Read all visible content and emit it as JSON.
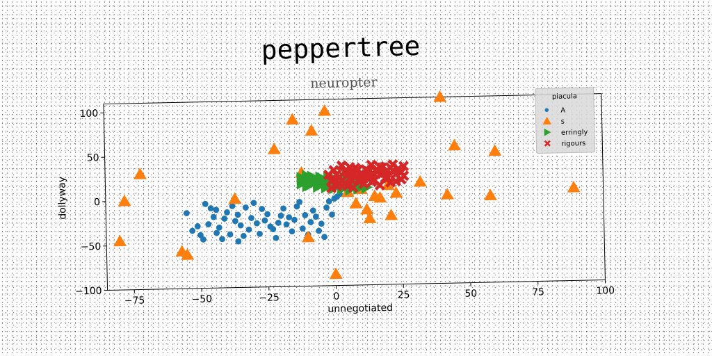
{
  "chart_data": {
    "type": "scatter",
    "title": "peppertree",
    "subtitle": "neuropter",
    "xlabel": "unnegotiated",
    "ylabel": "dollyway",
    "xlim": [
      -85,
      100
    ],
    "ylim": [
      -100,
      110
    ],
    "xticks": [
      -75,
      -50,
      -25,
      0,
      25,
      50,
      75,
      100
    ],
    "yticks": [
      -100,
      -50,
      0,
      50,
      100
    ],
    "grid": false,
    "legend": {
      "title": "piacula",
      "position": "top-right"
    },
    "series": [
      {
        "name": "A",
        "marker": "circle",
        "color": "#1f77b4",
        "points": [
          [
            -55,
            -15
          ],
          [
            -53,
            -35
          ],
          [
            -51,
            -30
          ],
          [
            -49,
            -45
          ],
          [
            -48,
            -5
          ],
          [
            -47,
            -28
          ],
          [
            -46,
            -10
          ],
          [
            -45,
            -20
          ],
          [
            -44,
            -38
          ],
          [
            -43,
            -32
          ],
          [
            -42,
            -45
          ],
          [
            -41,
            -22
          ],
          [
            -40,
            -15
          ],
          [
            -39,
            -40
          ],
          [
            -38,
            -8
          ],
          [
            -37,
            -25
          ],
          [
            -36,
            -18
          ],
          [
            -35,
            -30
          ],
          [
            -34,
            -42
          ],
          [
            -33,
            -10
          ],
          [
            -32,
            -35
          ],
          [
            -31,
            -22
          ],
          [
            -30,
            -5
          ],
          [
            -29,
            -28
          ],
          [
            -28,
            -40
          ],
          [
            -27,
            -12
          ],
          [
            -26,
            -25
          ],
          [
            -25,
            -18
          ],
          [
            -24,
            -32
          ],
          [
            -22,
            -45
          ],
          [
            -21,
            -28
          ],
          [
            -20,
            -20
          ],
          [
            -18,
            -30
          ],
          [
            -16,
            -38
          ],
          [
            -15,
            -25
          ],
          [
            -14,
            -10
          ],
          [
            -13,
            -5
          ],
          [
            -12,
            -35
          ],
          [
            -11,
            -20
          ],
          [
            -10,
            -42
          ],
          [
            -9,
            -28
          ],
          [
            -8,
            -15
          ],
          [
            -7,
            -22
          ],
          [
            -6,
            -38
          ],
          [
            -5,
            -30
          ],
          [
            -4,
            -45
          ],
          [
            -3,
            -12
          ],
          [
            -2,
            -5
          ],
          [
            -1,
            -20
          ],
          [
            0,
            -2
          ],
          [
            1,
            0
          ],
          [
            2,
            3
          ],
          [
            -17,
            -22
          ],
          [
            -19,
            -12
          ],
          [
            -23,
            -35
          ],
          [
            -36,
            -48
          ],
          [
            -44,
            -12
          ],
          [
            -50,
            -40
          ]
        ]
      },
      {
        "name": "s",
        "marker": "triangle",
        "color": "#ff7f0e",
        "points": [
          [
            -80,
            -45
          ],
          [
            -78,
            0
          ],
          [
            -72,
            30
          ],
          [
            -57,
            -58
          ],
          [
            -55,
            -62
          ],
          [
            -37,
            0
          ],
          [
            -22,
            55
          ],
          [
            -15,
            88
          ],
          [
            -12,
            28
          ],
          [
            -10,
            -45
          ],
          [
            -8,
            75
          ],
          [
            -3,
            97
          ],
          [
            0,
            -87
          ],
          [
            5,
            5
          ],
          [
            8,
            -8
          ],
          [
            10,
            8
          ],
          [
            12,
            -15
          ],
          [
            13,
            -25
          ],
          [
            15,
            0
          ],
          [
            17,
            -2
          ],
          [
            20,
            12
          ],
          [
            21,
            -22
          ],
          [
            23,
            3
          ],
          [
            32,
            15
          ],
          [
            40,
            110
          ],
          [
            42,
            0
          ],
          [
            45,
            55
          ],
          [
            58,
            -2
          ],
          [
            60,
            48
          ],
          [
            89,
            5
          ]
        ]
      },
      {
        "name": "erringly",
        "marker": "triangle-right",
        "color": "#2ca02c",
        "points": [
          [
            -12,
            22
          ],
          [
            -11,
            19
          ],
          [
            -10,
            24
          ],
          [
            -9,
            18
          ],
          [
            -8,
            23
          ],
          [
            -7,
            20
          ],
          [
            -6,
            17
          ],
          [
            -5,
            22
          ],
          [
            -4,
            19
          ],
          [
            -3,
            16
          ],
          [
            -2,
            21
          ],
          [
            -1,
            18
          ],
          [
            0,
            14
          ],
          [
            1,
            19
          ],
          [
            2,
            16
          ],
          [
            3,
            13
          ],
          [
            4,
            18
          ],
          [
            5,
            15
          ],
          [
            6,
            12
          ],
          [
            7,
            17
          ],
          [
            8,
            14
          ],
          [
            9,
            11
          ],
          [
            -9,
            14
          ],
          [
            -6,
            12
          ],
          [
            -3,
            11
          ],
          [
            0,
            10
          ],
          [
            3,
            9
          ],
          [
            6,
            8
          ],
          [
            9,
            9
          ],
          [
            12,
            10
          ],
          [
            -12,
            16
          ],
          [
            -10,
            13
          ],
          [
            4,
            21
          ],
          [
            7,
            22
          ],
          [
            10,
            15
          ]
        ]
      },
      {
        "name": "rigours",
        "marker": "x",
        "color": "#d62728",
        "points": [
          [
            -2,
            25
          ],
          [
            -1,
            18
          ],
          [
            0,
            30
          ],
          [
            1,
            12
          ],
          [
            2,
            22
          ],
          [
            3,
            35
          ],
          [
            4,
            15
          ],
          [
            5,
            28
          ],
          [
            6,
            20
          ],
          [
            7,
            10
          ],
          [
            8,
            32
          ],
          [
            9,
            18
          ],
          [
            10,
            25
          ],
          [
            11,
            14
          ],
          [
            12,
            30
          ],
          [
            13,
            22
          ],
          [
            14,
            35
          ],
          [
            15,
            18
          ],
          [
            16,
            27
          ],
          [
            17,
            12
          ],
          [
            18,
            32
          ],
          [
            19,
            20
          ],
          [
            20,
            28
          ],
          [
            21,
            15
          ],
          [
            22,
            35
          ],
          [
            23,
            24
          ],
          [
            24,
            30
          ],
          [
            25,
            18
          ],
          [
            26,
            33
          ],
          [
            0,
            20
          ],
          [
            2,
            15
          ],
          [
            4,
            28
          ],
          [
            6,
            33
          ],
          [
            8,
            22
          ],
          [
            10,
            18
          ],
          [
            12,
            24
          ],
          [
            14,
            16
          ],
          [
            16,
            30
          ],
          [
            18,
            25
          ],
          [
            20,
            20
          ],
          [
            22,
            28
          ],
          [
            -1,
            10
          ],
          [
            1,
            25
          ],
          [
            3,
            18
          ],
          [
            5,
            12
          ],
          [
            7,
            26
          ],
          [
            9,
            30
          ],
          [
            11,
            20
          ],
          [
            13,
            28
          ],
          [
            15,
            24
          ],
          [
            17,
            33
          ],
          [
            19,
            26
          ],
          [
            21,
            32
          ],
          [
            23,
            16
          ],
          [
            25,
            26
          ],
          [
            26,
            22
          ]
        ]
      }
    ]
  }
}
